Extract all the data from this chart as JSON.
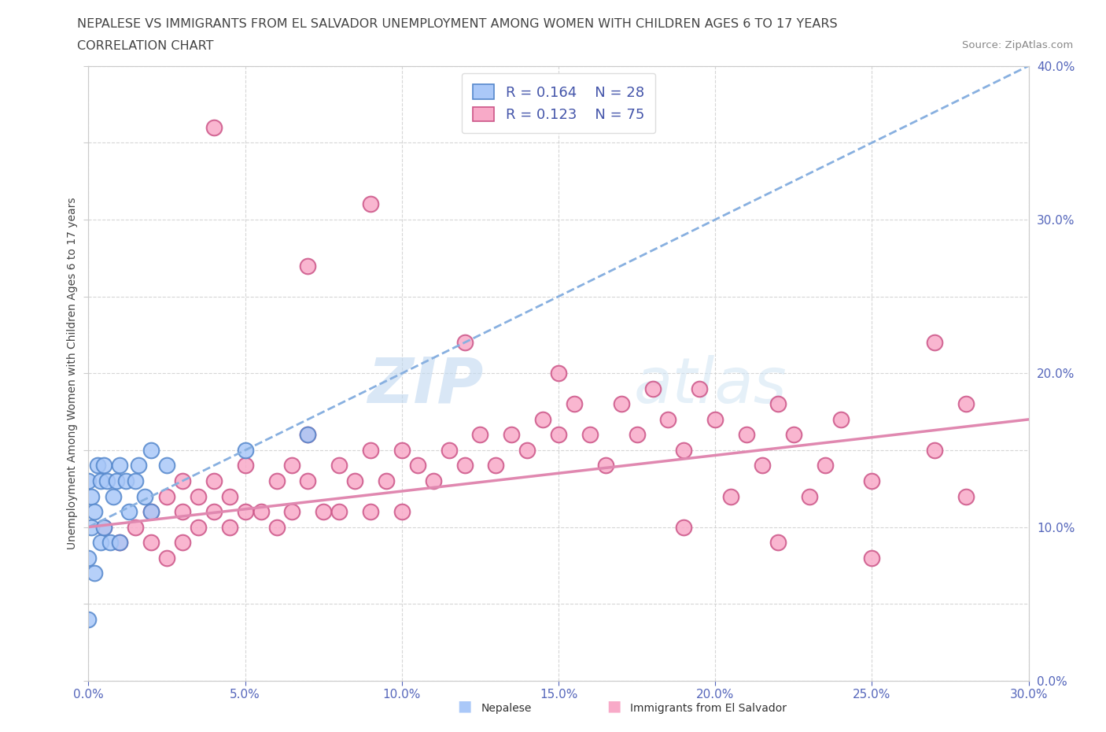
{
  "title_line1": "NEPALESE VS IMMIGRANTS FROM EL SALVADOR UNEMPLOYMENT AMONG WOMEN WITH CHILDREN AGES 6 TO 17 YEARS",
  "title_line2": "CORRELATION CHART",
  "source_text": "Source: ZipAtlas.com",
  "watermark_zip": "ZIP",
  "watermark_atlas": "atlas",
  "ylabel_left": "Unemployment Among Women with Children Ages 6 to 17 years",
  "xmin": 0.0,
  "xmax": 0.3,
  "ymin": 0.0,
  "ymax": 0.4,
  "xticks": [
    0.0,
    0.05,
    0.1,
    0.15,
    0.2,
    0.25,
    0.3
  ],
  "yticks_right": [
    0.0,
    0.1,
    0.2,
    0.3,
    0.4
  ],
  "nepalese_color": "#aac8f8",
  "elsalvador_color": "#f8aac8",
  "nepalese_edge": "#5588cc",
  "elsalvador_edge": "#cc5588",
  "nepalese_R": 0.164,
  "nepalese_N": 28,
  "elsalvador_R": 0.123,
  "elsalvador_N": 75,
  "trend_nepalese_color": "#88b0e0",
  "trend_elsalvador_color": "#e088b0",
  "background_color": "#ffffff",
  "grid_color": "#cccccc",
  "nepalese_x": [
    0.0,
    0.0,
    0.0,
    0.001,
    0.001,
    0.002,
    0.002,
    0.003,
    0.004,
    0.004,
    0.005,
    0.005,
    0.006,
    0.007,
    0.008,
    0.009,
    0.01,
    0.01,
    0.012,
    0.013,
    0.015,
    0.016,
    0.018,
    0.02,
    0.02,
    0.025,
    0.05,
    0.07
  ],
  "nepalese_y": [
    0.13,
    0.08,
    0.04,
    0.12,
    0.1,
    0.11,
    0.07,
    0.14,
    0.13,
    0.09,
    0.14,
    0.1,
    0.13,
    0.09,
    0.12,
    0.13,
    0.14,
    0.09,
    0.13,
    0.11,
    0.13,
    0.14,
    0.12,
    0.15,
    0.11,
    0.14,
    0.15,
    0.16
  ],
  "elsalvador_x": [
    0.005,
    0.01,
    0.015,
    0.02,
    0.02,
    0.025,
    0.025,
    0.03,
    0.03,
    0.03,
    0.035,
    0.035,
    0.04,
    0.04,
    0.045,
    0.045,
    0.05,
    0.05,
    0.055,
    0.06,
    0.06,
    0.065,
    0.065,
    0.07,
    0.07,
    0.075,
    0.08,
    0.08,
    0.085,
    0.09,
    0.09,
    0.095,
    0.1,
    0.1,
    0.105,
    0.11,
    0.115,
    0.12,
    0.125,
    0.13,
    0.135,
    0.14,
    0.145,
    0.15,
    0.155,
    0.16,
    0.165,
    0.17,
    0.175,
    0.18,
    0.185,
    0.19,
    0.195,
    0.2,
    0.205,
    0.21,
    0.215,
    0.22,
    0.225,
    0.23,
    0.235,
    0.24,
    0.25,
    0.27,
    0.28,
    0.04,
    0.07,
    0.09,
    0.12,
    0.15,
    0.19,
    0.22,
    0.25,
    0.27,
    0.28
  ],
  "elsalvador_y": [
    0.1,
    0.09,
    0.1,
    0.11,
    0.09,
    0.12,
    0.08,
    0.11,
    0.13,
    0.09,
    0.12,
    0.1,
    0.11,
    0.13,
    0.1,
    0.12,
    0.11,
    0.14,
    0.11,
    0.13,
    0.1,
    0.14,
    0.11,
    0.13,
    0.16,
    0.11,
    0.14,
    0.11,
    0.13,
    0.15,
    0.11,
    0.13,
    0.15,
    0.11,
    0.14,
    0.13,
    0.15,
    0.14,
    0.16,
    0.14,
    0.16,
    0.15,
    0.17,
    0.16,
    0.18,
    0.16,
    0.14,
    0.18,
    0.16,
    0.19,
    0.17,
    0.15,
    0.19,
    0.17,
    0.12,
    0.16,
    0.14,
    0.18,
    0.16,
    0.12,
    0.14,
    0.17,
    0.13,
    0.15,
    0.12,
    0.36,
    0.27,
    0.31,
    0.22,
    0.2,
    0.1,
    0.09,
    0.08,
    0.22,
    0.18
  ]
}
